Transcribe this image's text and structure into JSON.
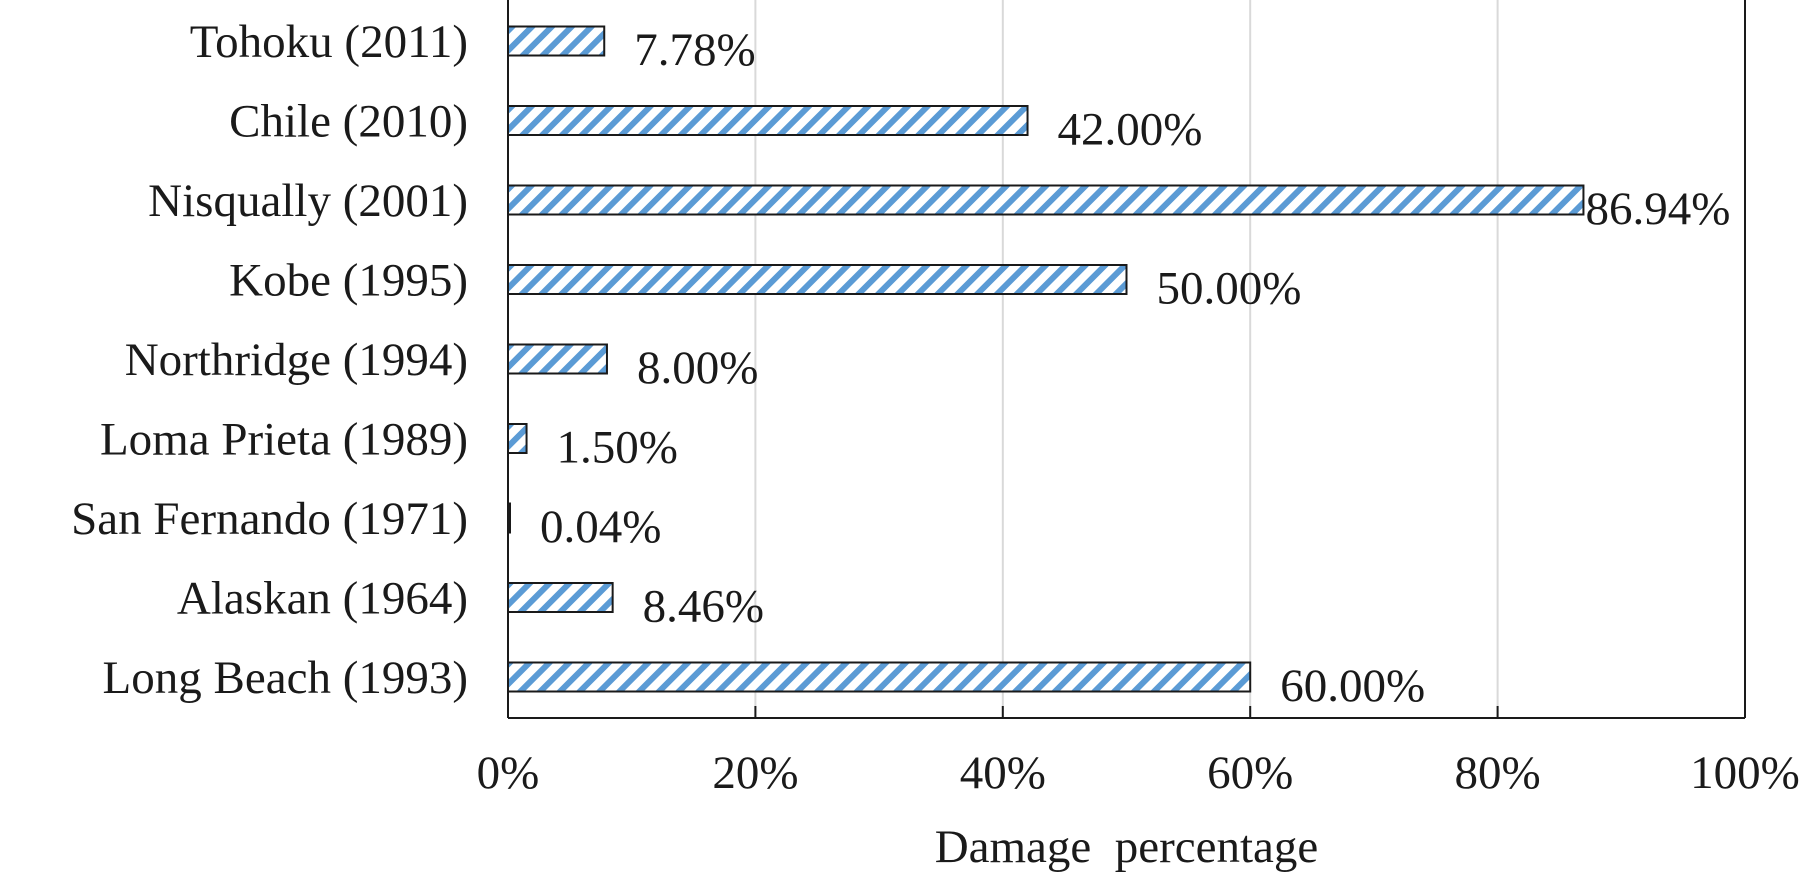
{
  "chart_data": {
    "type": "bar",
    "orientation": "horizontal",
    "categories": [
      "Tohoku (2011)",
      "Chile (2010)",
      "Nisqually (2001)",
      "Kobe (1995)",
      "Northridge (1994)",
      "Loma Prieta (1989)",
      "San Fernando (1971)",
      "Alaskan (1964)",
      "Long Beach (1993)"
    ],
    "values": [
      7.78,
      42.0,
      86.94,
      50.0,
      8.0,
      1.5,
      0.04,
      8.46,
      60.0
    ],
    "value_labels": [
      "7.78%",
      "42.00%",
      "86.94%",
      "50.00%",
      "8.00%",
      "1.50%",
      "0.04%",
      "8.46%",
      "60.00%"
    ],
    "xlabel": "Damage  percentage",
    "ylabel": "",
    "title": "",
    "xlim": [
      0,
      100
    ],
    "xticks": [
      0,
      20,
      40,
      60,
      80,
      100
    ],
    "xtick_labels": [
      "0%",
      "20%",
      "40%",
      "60%",
      "80%",
      "100%"
    ],
    "grid": "vertical",
    "bar_fill": "diagonal-hatch",
    "colors": {
      "hatch": "#5b9bd5",
      "bar_edge": "#1a1a1a",
      "grid": "#d9d9d9",
      "axis": "#1a1a1a"
    }
  }
}
